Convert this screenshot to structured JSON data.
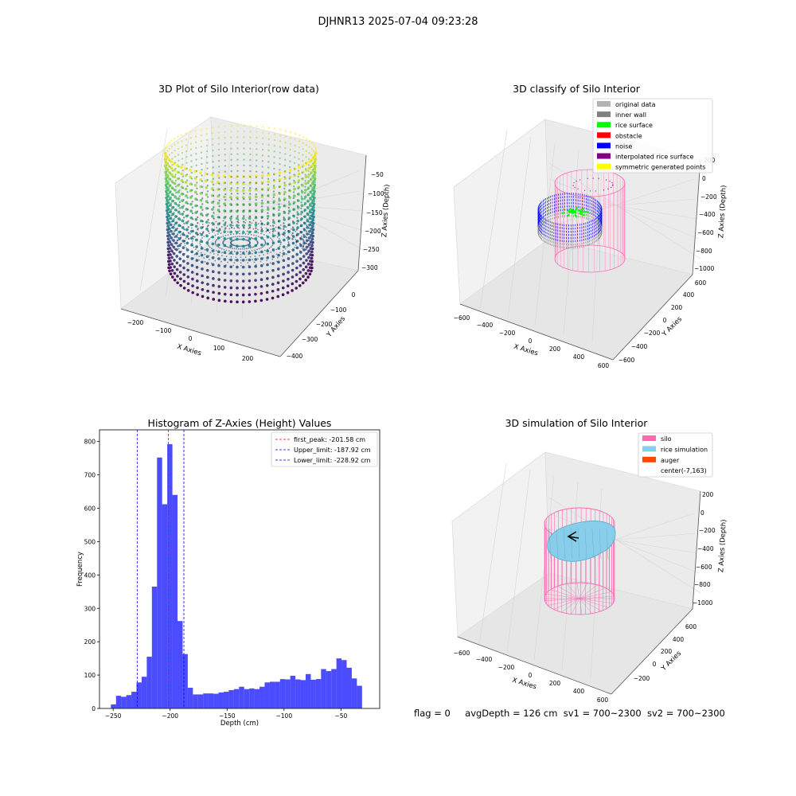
{
  "suptitle": "DJHNR13 2025-07-04 09:23:28",
  "panels": {
    "raw": {
      "title": "3D Plot of Silo Interior(row data)",
      "xlabel": "X Axies",
      "ylabel": "Y Axies",
      "zlabel": "Z Axies (Depth)",
      "xticks": [
        "−200",
        "−100",
        "0",
        "100",
        "200"
      ],
      "yticks": [
        "0",
        "−100",
        "−200",
        "−300",
        "−400"
      ],
      "zticks": [
        "−50",
        "−100",
        "−150",
        "−200",
        "−250",
        "−300"
      ]
    },
    "classify": {
      "title": "3D classify of Silo Interior",
      "xlabel": "X Axies",
      "ylabel": "Y Axies",
      "zlabel": "Z Axies (Depth)",
      "xticks": [
        "−600",
        "−400",
        "−200",
        "0",
        "200",
        "400",
        "600"
      ],
      "yticks": [
        "600",
        "400",
        "200",
        "0",
        "−200",
        "−400",
        "−600"
      ],
      "zticks": [
        "200",
        "0",
        "−200",
        "−400",
        "−600",
        "−800",
        "−1000"
      ],
      "legend": [
        {
          "label": "original data",
          "color": "#b3b3b3"
        },
        {
          "label": "inner wall",
          "color": "#808080"
        },
        {
          "label": "rice surface",
          "color": "#00ff00"
        },
        {
          "label": "obstacle",
          "color": "#ff0000"
        },
        {
          "label": "noise",
          "color": "#0000ff"
        },
        {
          "label": "interpolated rice surface",
          "color": "#800080"
        },
        {
          "label": "symmetric generated points",
          "color": "#ffff00"
        }
      ]
    },
    "simulation": {
      "title": "3D simulation of Silo Interior",
      "xlabel": "X Axies",
      "ylabel": "Y Axies",
      "zlabel": "Z Axies (Depth)",
      "xticks": [
        "−600",
        "−400",
        "−200",
        "0",
        "200",
        "400",
        "600"
      ],
      "yticks": [
        "600",
        "400",
        "200",
        "0",
        "−200"
      ],
      "zticks": [
        "200",
        "0",
        "−200",
        "−400",
        "−600",
        "−800",
        "−1000"
      ],
      "legend": [
        {
          "label": "silo",
          "color": "#ff69b4"
        },
        {
          "label": "rice simulation",
          "color": "#87ceeb"
        },
        {
          "label": "auger",
          "color": "#ff4500"
        },
        {
          "label": "center(-7,163)",
          "color": ""
        }
      ]
    }
  },
  "status": {
    "flag": "flag = 0",
    "avg": "avgDepth = 126 cm",
    "sv1": "sv1 = 700~2300",
    "sv2": "sv2 = 700~2300"
  },
  "chart_data": {
    "type": "bar",
    "title": "Histogram of Z-Axies (Height) Values",
    "xlabel": "Depth (cm)",
    "ylabel": "Frequency",
    "xlim": [
      -262,
      -16
    ],
    "ylim": [
      0,
      835
    ],
    "xticks": [
      -250,
      -200,
      -150,
      -100,
      -50
    ],
    "yticks": [
      0,
      100,
      200,
      300,
      400,
      500,
      600,
      700,
      800
    ],
    "bin_start": -252,
    "bin_width": 4.5,
    "values": [
      12,
      38,
      35,
      40,
      50,
      78,
      95,
      155,
      365,
      752,
      612,
      792,
      640,
      262,
      163,
      62,
      42,
      42,
      45,
      45,
      44,
      48,
      50,
      55,
      58,
      65,
      58,
      60,
      58,
      65,
      78,
      80,
      80,
      88,
      87,
      98,
      87,
      85,
      103,
      86,
      88,
      118,
      112,
      118,
      150,
      145,
      122,
      90,
      68
    ],
    "bar_color": "#0000ff",
    "lines": [
      {
        "x": -201.58,
        "label": "first_peak: -201.58 cm",
        "color": "#ff0000"
      },
      {
        "x": -187.92,
        "label": "Upper_limit: -187.92 cm",
        "color": "#0000ff"
      },
      {
        "x": -228.92,
        "label": "Lower_limit: -228.92 cm",
        "color": "#0000ff"
      }
    ],
    "legend_position": "upper right"
  }
}
